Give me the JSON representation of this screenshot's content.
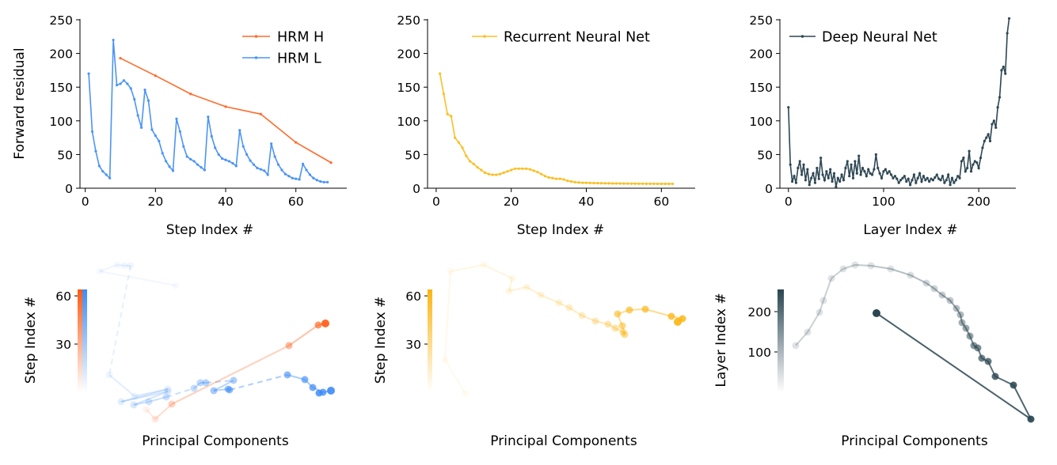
{
  "chart_data": [
    {
      "type": "line",
      "xlabel": "Step Index #",
      "ylabel": "Forward residual",
      "xlim": [
        -1.5,
        74.5
      ],
      "ylim": [
        0,
        250
      ],
      "xticks": [
        0,
        20,
        40,
        60
      ],
      "yticks": [
        0,
        50,
        100,
        150,
        200,
        250
      ],
      "grid": false,
      "legend": "top-right",
      "series": [
        {
          "name": "HRM H",
          "color": "#ff6b2c",
          "x": [
            10,
            20,
            30,
            40,
            50,
            60,
            70
          ],
          "y": [
            193,
            167,
            140,
            121,
            110,
            68,
            38
          ]
        },
        {
          "name": "HRM L",
          "color": "#4d94f5",
          "x": [
            1,
            2,
            3,
            4,
            5,
            6,
            7,
            8,
            9,
            10,
            11,
            12,
            13,
            14,
            15,
            16,
            17,
            18,
            19,
            20,
            21,
            22,
            23,
            24,
            25,
            26,
            27,
            28,
            29,
            30,
            31,
            32,
            33,
            34,
            35,
            36,
            37,
            38,
            39,
            40,
            41,
            42,
            43,
            44,
            45,
            46,
            47,
            48,
            49,
            50,
            51,
            52,
            53,
            54,
            55,
            56,
            57,
            58,
            59,
            60,
            61,
            62,
            63,
            64,
            65,
            66,
            67,
            68,
            69
          ],
          "y": [
            170,
            84,
            55,
            33,
            25,
            20,
            15,
            220,
            153,
            155,
            160,
            155,
            148,
            132,
            108,
            90,
            146,
            130,
            87,
            78,
            70,
            52,
            40,
            32,
            26,
            103,
            84,
            62,
            47,
            43,
            40,
            35,
            31,
            27,
            106,
            77,
            60,
            50,
            44,
            42,
            40,
            37,
            33,
            86,
            62,
            50,
            41,
            35,
            30,
            28,
            26,
            20,
            66,
            47,
            35,
            27,
            21,
            18,
            15,
            14,
            13,
            36,
            27,
            20,
            15,
            12,
            10,
            9,
            9
          ]
        }
      ]
    },
    {
      "type": "line",
      "xlabel": "Step Index #",
      "ylabel": "",
      "xlim": [
        -2.3,
        69
      ],
      "ylim": [
        0,
        250
      ],
      "xticks": [
        0,
        20,
        40,
        60
      ],
      "yticks": [
        0,
        50,
        100,
        150,
        200,
        250
      ],
      "grid": false,
      "legend": "top-right",
      "series": [
        {
          "name": "Recurrent Neural Net",
          "color": "#fbbf24",
          "x_start": 1,
          "x_step": 1,
          "y": [
            170,
            140,
            110,
            107,
            75,
            68,
            60,
            48,
            40,
            36,
            31,
            27,
            23,
            21,
            20,
            20,
            21,
            23,
            25,
            27,
            29,
            29,
            29,
            29,
            28,
            26,
            24,
            21,
            18,
            16,
            15,
            14,
            14,
            13,
            11,
            10,
            9,
            8.5,
            8,
            8,
            7.8,
            7.6,
            7.5,
            7.4,
            7.3,
            7.2,
            7.1,
            7,
            7,
            6.9,
            6.9,
            6.8,
            6.8,
            6.7,
            6.7,
            6.6,
            6.6,
            6.6,
            6.5,
            6.5,
            6.5,
            6.5,
            6.5
          ]
        }
      ]
    },
    {
      "type": "line",
      "xlabel": "Layer Index #",
      "ylabel": "",
      "xlim": [
        -9,
        239
      ],
      "ylim": [
        0,
        250
      ],
      "xticks": [
        0,
        100,
        200
      ],
      "yticks": [
        0,
        50,
        100,
        150,
        200,
        250
      ],
      "grid": false,
      "legend": "top-left",
      "series": [
        {
          "name": "Deep Neural Net",
          "color": "#2e4753",
          "x_start": 0,
          "x_step": 2,
          "y": [
            120,
            35,
            10,
            18,
            8,
            30,
            40,
            20,
            35,
            12,
            28,
            5,
            15,
            22,
            8,
            30,
            14,
            45,
            20,
            12,
            25,
            15,
            28,
            10,
            22,
            2,
            15,
            10,
            20,
            12,
            30,
            40,
            18,
            35,
            15,
            40,
            22,
            48,
            20,
            30,
            25,
            18,
            28,
            22,
            20,
            28,
            50,
            30,
            22,
            15,
            25,
            28,
            22,
            25,
            20,
            15,
            18,
            14,
            8,
            12,
            15,
            18,
            10,
            14,
            5,
            12,
            20,
            8,
            15,
            22,
            10,
            18,
            12,
            15,
            10,
            14,
            12,
            16,
            20,
            14,
            12,
            18,
            8,
            12,
            20,
            5,
            15,
            8,
            12,
            18,
            15,
            40,
            45,
            25,
            30,
            55,
            25,
            35,
            40,
            38,
            30,
            45,
            60,
            70,
            75,
            80,
            70,
            95,
            100,
            90,
            120,
            135,
            175,
            180,
            170,
            230,
            255
          ]
        }
      ]
    },
    {
      "type": "scatter",
      "xlabel": "Principal Components",
      "colorbar_label": "Step Index #",
      "colorbar_range": [
        0,
        64
      ],
      "colorbar_ticks": [
        30,
        60
      ],
      "series": [
        {
          "name": "HRM L",
          "color": "#3d8bf7",
          "points": [
            [
              122,
              179
            ],
            [
              26,
              197
            ],
            [
              48,
              205
            ],
            [
              57,
              204
            ],
            [
              65,
              204
            ],
            [
              38,
              66
            ],
            [
              70,
              39
            ],
            [
              112,
              48
            ],
            [
              53,
              32
            ],
            [
              112,
              45
            ],
            [
              69,
              28
            ],
            [
              88,
              32
            ],
            [
              110,
              38
            ],
            [
              145,
              49
            ],
            [
              153,
              56
            ],
            [
              160,
              56
            ],
            [
              195,
              59
            ],
            [
              170,
              46
            ],
            [
              188,
              48
            ],
            [
              190,
              47
            ],
            [
              263,
              66
            ],
            [
              285,
              60
            ],
            [
              295,
              50
            ],
            [
              308,
              44
            ],
            [
              303,
              43
            ],
            [
              318,
              46
            ]
          ],
          "dashed_segments": [
            4,
            12,
            15,
            19
          ]
        },
        {
          "name": "HRM H",
          "color": "#ff5a12",
          "points": [
            [
              85,
              22
            ],
            [
              96,
              10
            ],
            [
              117,
              29
            ],
            [
              265,
              103
            ],
            [
              302,
              129
            ],
            [
              311,
              131
            ]
          ],
          "dashed_segments": []
        }
      ]
    },
    {
      "type": "scatter",
      "xlabel": "Principal Components",
      "colorbar_label": "Step Index #",
      "colorbar_range": [
        0,
        64
      ],
      "colorbar_ticks": [
        30,
        60
      ],
      "series": [
        {
          "name": "Recurrent Neural Net",
          "color": "#fbb512",
          "points": [
            [
              48,
              42
            ],
            [
              22,
              85
            ],
            [
              29,
              197
            ],
            [
              71,
              205
            ],
            [
              107,
              188
            ],
            [
              103,
              172
            ],
            [
              125,
              177
            ],
            [
              143,
              167
            ],
            [
              166,
              157
            ],
            [
              179,
              151
            ],
            [
              195,
              141
            ],
            [
              212,
              134
            ],
            [
              228,
              130
            ],
            [
              237,
              125
            ],
            [
              247,
              120
            ],
            [
              249,
              117
            ],
            [
              246,
              128
            ],
            [
              240,
              143
            ],
            [
              255,
              148
            ],
            [
              275,
              149
            ],
            [
              308,
              140
            ],
            [
              322,
              137
            ],
            [
              316,
              133
            ]
          ],
          "dashed_segments": []
        }
      ]
    },
    {
      "type": "scatter",
      "xlabel": "Principal Components",
      "colorbar_label": "Layer Index #",
      "colorbar_range": [
        0,
        255
      ],
      "colorbar_ticks": [
        100,
        200
      ],
      "series": [
        {
          "name": "Deep Neural Net",
          "color": "#2a4652",
          "points": [
            [
              15,
              103
            ],
            [
              30,
              120
            ],
            [
              45,
              145
            ],
            [
              50,
              160
            ],
            [
              60,
              188
            ],
            [
              75,
              200
            ],
            [
              90,
              205
            ],
            [
              110,
              204
            ],
            [
              135,
              200
            ],
            [
              160,
              192
            ],
            [
              180,
              182
            ],
            [
              190,
              175
            ],
            [
              200,
              167
            ],
            [
              210,
              160
            ],
            [
              218,
              150
            ],
            [
              223,
              142
            ],
            [
              225,
              132
            ],
            [
              230,
              125
            ],
            [
              235,
              115
            ],
            [
              240,
              103
            ],
            [
              245,
              100
            ],
            [
              250,
              87
            ],
            [
              258,
              83
            ],
            [
              267,
              64
            ],
            [
              290,
              53
            ],
            [
              312,
              10
            ],
            [
              117,
              144
            ]
          ],
          "dashed_segments": []
        }
      ]
    }
  ]
}
